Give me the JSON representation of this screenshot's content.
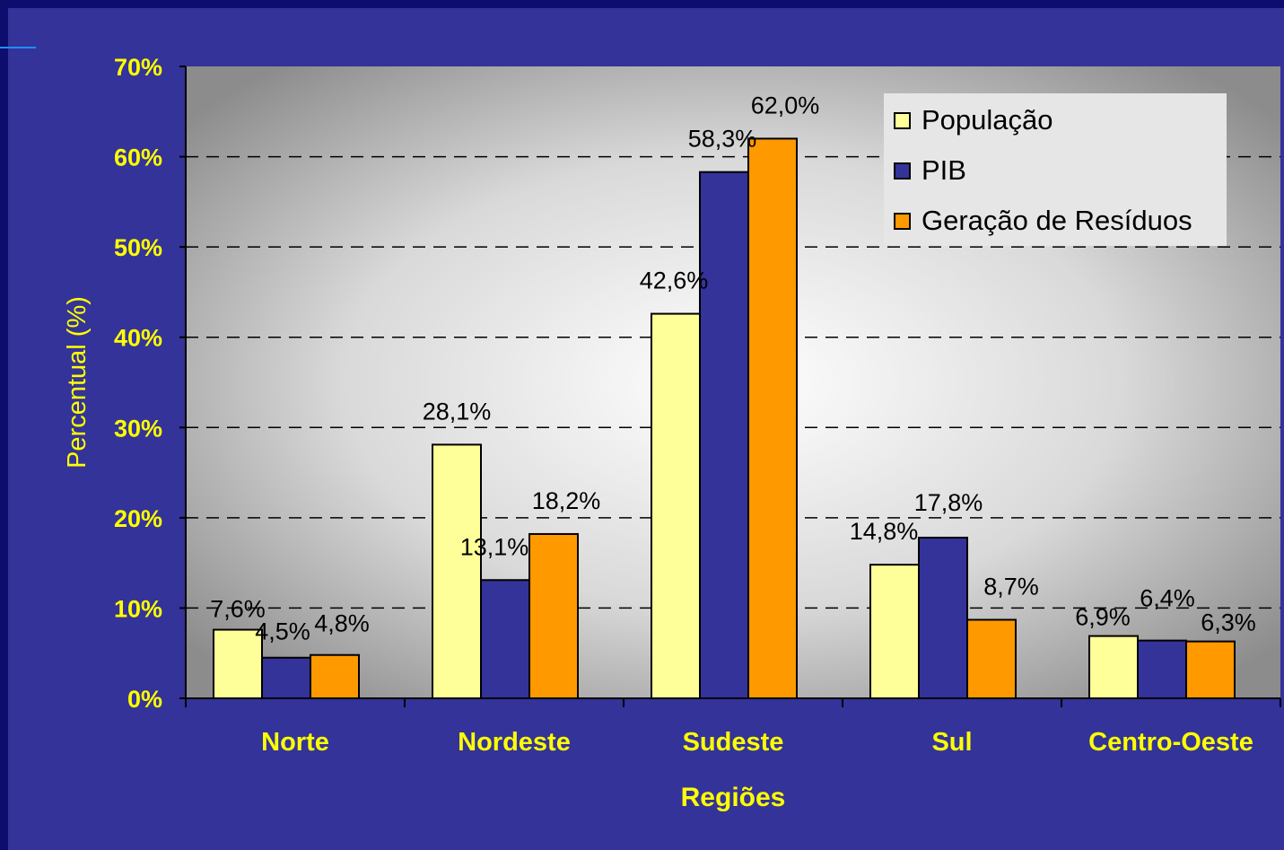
{
  "chart_data": {
    "type": "bar",
    "categories": [
      "Norte",
      "Nordeste",
      "Sudeste",
      "Sul",
      "Centro-Oeste"
    ],
    "series": [
      {
        "name": "População",
        "values": [
          7.6,
          28.1,
          42.6,
          14.8,
          6.9
        ],
        "labels": [
          "7,6%",
          "28,1%",
          "42,6%",
          "14,8%",
          "6,9%"
        ],
        "color": "#ffff99"
      },
      {
        "name": "PIB",
        "values": [
          4.5,
          13.1,
          58.3,
          17.8,
          6.4
        ],
        "labels": [
          "4,5%",
          "13,1%",
          "58,3%",
          "17,8%",
          "6,4%"
        ],
        "color": "#333399"
      },
      {
        "name": "Geração de Resíduos",
        "values": [
          4.8,
          18.2,
          62.0,
          8.7,
          6.3
        ],
        "labels": [
          "4,8%",
          "18,2%",
          "62,0%",
          "8,7%",
          "6,3%"
        ],
        "color": "#ff9900"
      }
    ],
    "title": "",
    "xlabel": "Regiões",
    "ylabel": "Percentual (%)",
    "ylim": [
      0,
      70
    ],
    "yticks": [
      "0%",
      "10%",
      "20%",
      "30%",
      "40%",
      "50%",
      "60%",
      "70%"
    ],
    "grid": true,
    "legend_position": "top-right"
  },
  "colors": {
    "background": "#333399",
    "axis_text": "#ffff00",
    "gridline": "#000000"
  }
}
